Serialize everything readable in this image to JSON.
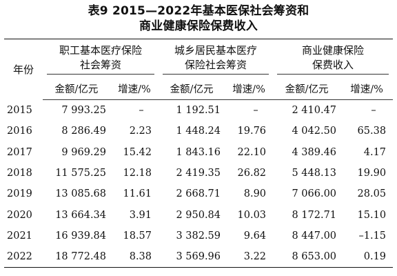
{
  "title": {
    "line1": "表9 2015—2022年基本医保社会筹资和",
    "line2": "商业健康保险保费收入"
  },
  "table": {
    "year_header": "年份",
    "groups": [
      {
        "line1": "职工基本医疗保险",
        "line2": "社会筹资"
      },
      {
        "line1": "城乡居民基本医疗",
        "line2": "保险社会筹资"
      },
      {
        "line1": "商业健康保险",
        "line2": "保费收入"
      }
    ],
    "sub_headers": [
      "金额/亿元",
      "增速/%",
      "金额/亿元",
      "增速/%",
      "金额/亿元",
      "增速/%"
    ],
    "rows": [
      [
        "2015",
        "7 993.25",
        "–",
        "1 192.51",
        "–",
        "2 410.47",
        "–"
      ],
      [
        "2016",
        "8 286.49",
        "2.23",
        "1 448.24",
        "19.76",
        "4 042.50",
        "65.38"
      ],
      [
        "2017",
        "9 969.29",
        "15.42",
        "1 843.16",
        "22.10",
        "4 389.46",
        "4.17"
      ],
      [
        "2018",
        "11 575.25",
        "12.18",
        "2 419.35",
        "26.82",
        "5 448.13",
        "19.90"
      ],
      [
        "2019",
        "13 085.68",
        "11.61",
        "2 668.71",
        "8.90",
        "7 066.00",
        "28.05"
      ],
      [
        "2020",
        "13 664.34",
        "3.91",
        "2 950.84",
        "10.03",
        "8 172.71",
        "15.10"
      ],
      [
        "2021",
        "16 939.84",
        "18.57",
        "3 382.59",
        "9.64",
        "8 447.00",
        "–1.15"
      ],
      [
        "2022",
        "18 772.48",
        "8.38",
        "3 569.96",
        "3.22",
        "8 653.00",
        "0.19"
      ]
    ]
  }
}
